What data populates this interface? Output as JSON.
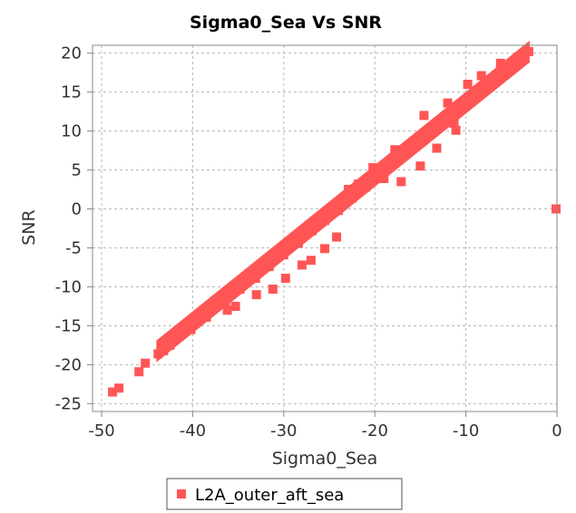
{
  "chart_data": {
    "type": "scatter",
    "title": "Sigma0_Sea Vs SNR",
    "xlabel": "Sigma0_Sea",
    "ylabel": "SNR",
    "xlim": [
      -51,
      0
    ],
    "ylim": [
      -26,
      21
    ],
    "xticks": [
      -50,
      -40,
      -30,
      -20,
      -10,
      0
    ],
    "yticks": [
      -25,
      -20,
      -15,
      -10,
      -5,
      0,
      5,
      10,
      15,
      20
    ],
    "xtick_labels": [
      "-50",
      "-40",
      "-30",
      "-20",
      "-10",
      "0"
    ],
    "ytick_labels": [
      "-25",
      "-20",
      "-15",
      "-10",
      "-5",
      "0",
      "5",
      "10",
      "15",
      "20"
    ],
    "grid": true,
    "legend_position": "bottom-center",
    "series": [
      {
        "name": "L2A_outer_aft_sea",
        "color": "#ff5555",
        "trend": {
          "x_start": -44,
          "y_start": -18.3,
          "x_end": -3,
          "y_end": 20.2,
          "band_halfwidth": 1.4
        },
        "points": [
          {
            "x": -48.8,
            "y": -23.5
          },
          {
            "x": -48.1,
            "y": -23.0
          },
          {
            "x": -45.9,
            "y": -20.9
          },
          {
            "x": -45.2,
            "y": -19.8
          },
          {
            "x": -43.8,
            "y": -18.6
          },
          {
            "x": -43.2,
            "y": -18.2
          },
          {
            "x": -42.5,
            "y": -17.5
          },
          {
            "x": -40.2,
            "y": -15.5
          },
          {
            "x": -38.5,
            "y": -13.9
          },
          {
            "x": -36.4,
            "y": -12.2
          },
          {
            "x": -34.8,
            "y": -10.3
          },
          {
            "x": -33.1,
            "y": -8.9
          },
          {
            "x": -31.6,
            "y": -7.4
          },
          {
            "x": -30.0,
            "y": -5.9
          },
          {
            "x": -28.4,
            "y": -4.4
          },
          {
            "x": -26.9,
            "y": -2.8
          },
          {
            "x": -25.5,
            "y": -1.5
          },
          {
            "x": -24.0,
            "y": -0.2
          },
          {
            "x": -22.5,
            "y": 1.4
          },
          {
            "x": -21.0,
            "y": 2.8
          },
          {
            "x": -19.5,
            "y": 4.3
          },
          {
            "x": -18.0,
            "y": 5.8
          },
          {
            "x": -16.5,
            "y": 7.2
          },
          {
            "x": -15.0,
            "y": 8.7
          },
          {
            "x": -13.5,
            "y": 10.1
          },
          {
            "x": -12.0,
            "y": 11.6
          },
          {
            "x": -10.5,
            "y": 13.0
          },
          {
            "x": -9.0,
            "y": 14.5
          },
          {
            "x": -7.5,
            "y": 15.9
          },
          {
            "x": -6.5,
            "y": 17.2
          },
          {
            "x": -5.4,
            "y": 18.3
          },
          {
            "x": -4.2,
            "y": 19.5
          },
          {
            "x": -3.1,
            "y": 20.2
          },
          {
            "x": -0.1,
            "y": 0.0
          },
          {
            "x": -33.0,
            "y": -11.0
          },
          {
            "x": -31.2,
            "y": -10.3
          },
          {
            "x": -29.8,
            "y": -8.9
          },
          {
            "x": -28.0,
            "y": -7.2
          },
          {
            "x": -27.0,
            "y": -6.6
          },
          {
            "x": -25.5,
            "y": -5.1
          },
          {
            "x": -24.2,
            "y": -3.6
          },
          {
            "x": -36.2,
            "y": -13.0
          },
          {
            "x": -35.3,
            "y": -12.5
          },
          {
            "x": -22.9,
            "y": 2.5
          },
          {
            "x": -21.8,
            "y": 3.2
          },
          {
            "x": -20.2,
            "y": 5.3
          },
          {
            "x": -17.8,
            "y": 7.6
          },
          {
            "x": -14.6,
            "y": 12.0
          },
          {
            "x": -12.0,
            "y": 13.6
          },
          {
            "x": -9.8,
            "y": 16.0
          },
          {
            "x": -8.3,
            "y": 17.1
          },
          {
            "x": -6.2,
            "y": 18.7
          },
          {
            "x": -11.3,
            "y": 11.0
          },
          {
            "x": -19.0,
            "y": 3.9
          },
          {
            "x": -13.2,
            "y": 7.8
          },
          {
            "x": -11.1,
            "y": 10.1
          },
          {
            "x": -17.1,
            "y": 3.5
          },
          {
            "x": -15.0,
            "y": 5.5
          },
          {
            "x": -29.0,
            "y": -4.4
          },
          {
            "x": -27.5,
            "y": -3.2
          }
        ]
      }
    ]
  }
}
